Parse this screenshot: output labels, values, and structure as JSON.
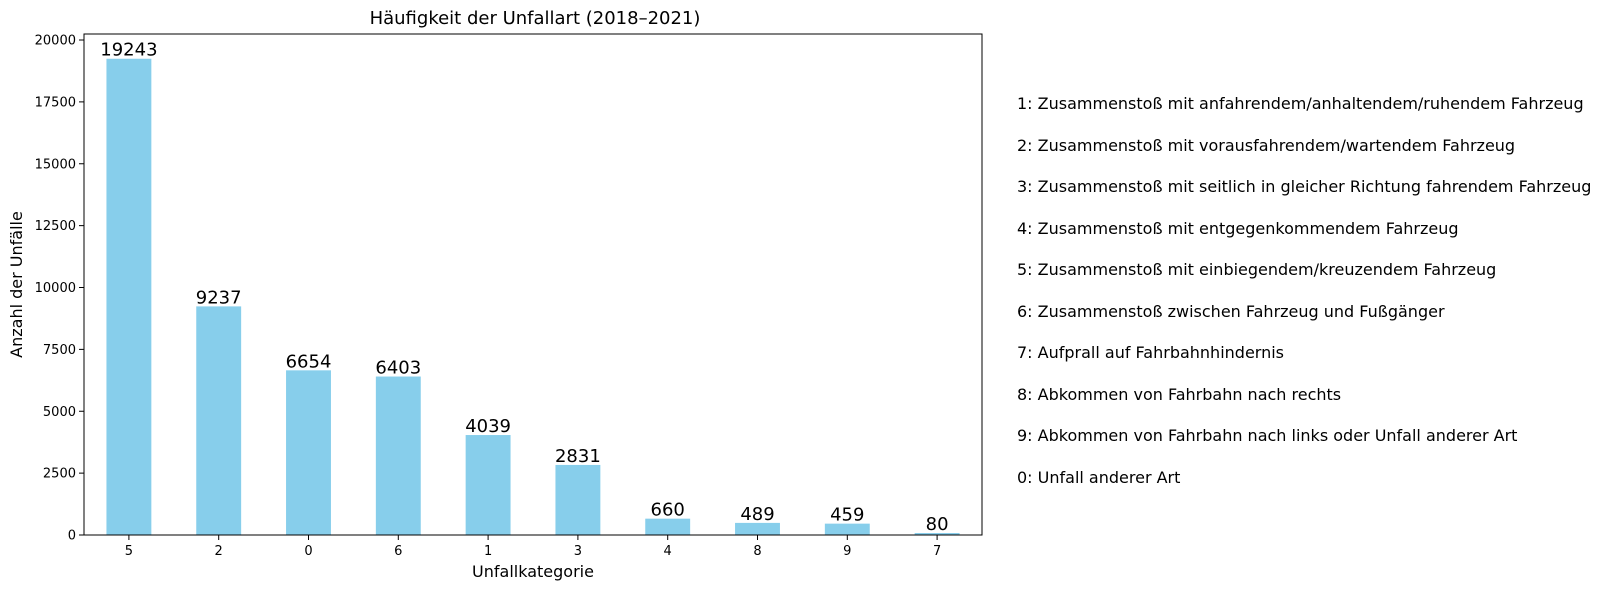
{
  "chart_data": {
    "type": "bar",
    "title": "Häufigkeit der Unfallart (2018–2021)",
    "xlabel": "Unfallkategorie",
    "ylabel": "Anzahl der Unfälle",
    "categories": [
      "5",
      "2",
      "0",
      "6",
      "1",
      "3",
      "4",
      "8",
      "9",
      "7"
    ],
    "values": [
      19243,
      9237,
      6654,
      6403,
      4039,
      2831,
      660,
      489,
      459,
      80
    ],
    "data_labels": [
      "19243",
      "9237",
      "6654",
      "6403",
      "4039",
      "2831",
      "660",
      "489",
      "459",
      "80"
    ],
    "ylim": [
      0,
      20243
    ],
    "yticks": [
      0,
      2500,
      5000,
      7500,
      10000,
      12500,
      15000,
      17500,
      20000
    ],
    "ytick_labels": [
      "0",
      "2500",
      "5000",
      "7500",
      "10000",
      "12500",
      "15000",
      "17500",
      "20000"
    ],
    "bar_color": "#87CEEB",
    "grid": false,
    "legend_placement": "right-outside"
  },
  "legend": {
    "items": [
      "1: Zusammenstoß mit anfahrendem/anhaltendem/ruhendem Fahrzeug",
      "2: Zusammenstoß mit vorausfahrendem/wartendem Fahrzeug",
      "3: Zusammenstoß mit seitlich in gleicher Richtung fahrendem Fahrzeug",
      "4: Zusammenstoß mit entgegenkommendem Fahrzeug",
      "5: Zusammenstoß mit einbiegendem/kreuzendem Fahrzeug",
      "6: Zusammenstoß zwischen Fahrzeug und Fußgänger",
      "7: Aufprall auf Fahrbahnhindernis",
      "8: Abkommen von Fahrbahn nach rechts",
      "9: Abkommen von Fahrbahn nach links oder Unfall anderer Art",
      "0: Unfall anderer Art"
    ]
  }
}
